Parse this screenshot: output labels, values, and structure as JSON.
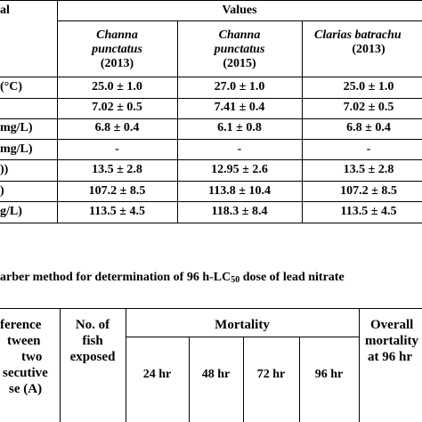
{
  "table1": {
    "header": {
      "param_fragment": "al",
      "values_label": "Values",
      "columns": [
        {
          "species": "Channa",
          "species2": "punctatus",
          "year": "(2013)"
        },
        {
          "species": "Channa",
          "species2": "punctatus",
          "year": "(2015)"
        },
        {
          "species": "Clarias batrachu",
          "species2": "",
          "year": "(2013)"
        }
      ]
    },
    "rows": [
      {
        "label": "(°C)",
        "values": [
          "25.0 ± 1.0",
          "27.0 ± 1.0",
          "25.0 ± 1.0"
        ]
      },
      {
        "label": "",
        "values": [
          "7.02 ± 0.5",
          "7.41 ± 0.4",
          "7.02 ± 0.5"
        ]
      },
      {
        "label": "mg/L)",
        "values": [
          "6.8 ± 0.4",
          "6.1 ± 0.8",
          "6.8 ± 0.4"
        ]
      },
      {
        "label": "mg/L)",
        "values": [
          "-",
          "-",
          "-"
        ]
      },
      {
        "label": "))",
        "values": [
          "13.5 ± 2.8",
          "12.95 ± 2.6",
          "13.5 ± 2.8"
        ]
      },
      {
        "label": ")",
        "values": [
          "107.2 ± 8.5",
          "113.8 ± 10.4",
          "107.2 ± 8.5"
        ]
      },
      {
        "label": "g/L)",
        "values": [
          "113.5 ± 4.5",
          "118.3 ± 8.4",
          "113.5 ± 4.5"
        ]
      }
    ]
  },
  "caption": {
    "text_before": "arber method for determination of 96 h-LC",
    "subscript": "50",
    "text_after": " dose of lead nitrate"
  },
  "table2": {
    "difference_lines": [
      "ference",
      "tween",
      "two",
      "secutive",
      "se (A)"
    ],
    "fish_lines": [
      "No. of",
      "fish",
      "exposed"
    ],
    "mortality_label": "Mortality",
    "hours": [
      "24 hr",
      "48 hr",
      "72 hr",
      "96 hr"
    ],
    "overall_lines": [
      "Overall",
      "mortality",
      "at 96 hr"
    ]
  }
}
